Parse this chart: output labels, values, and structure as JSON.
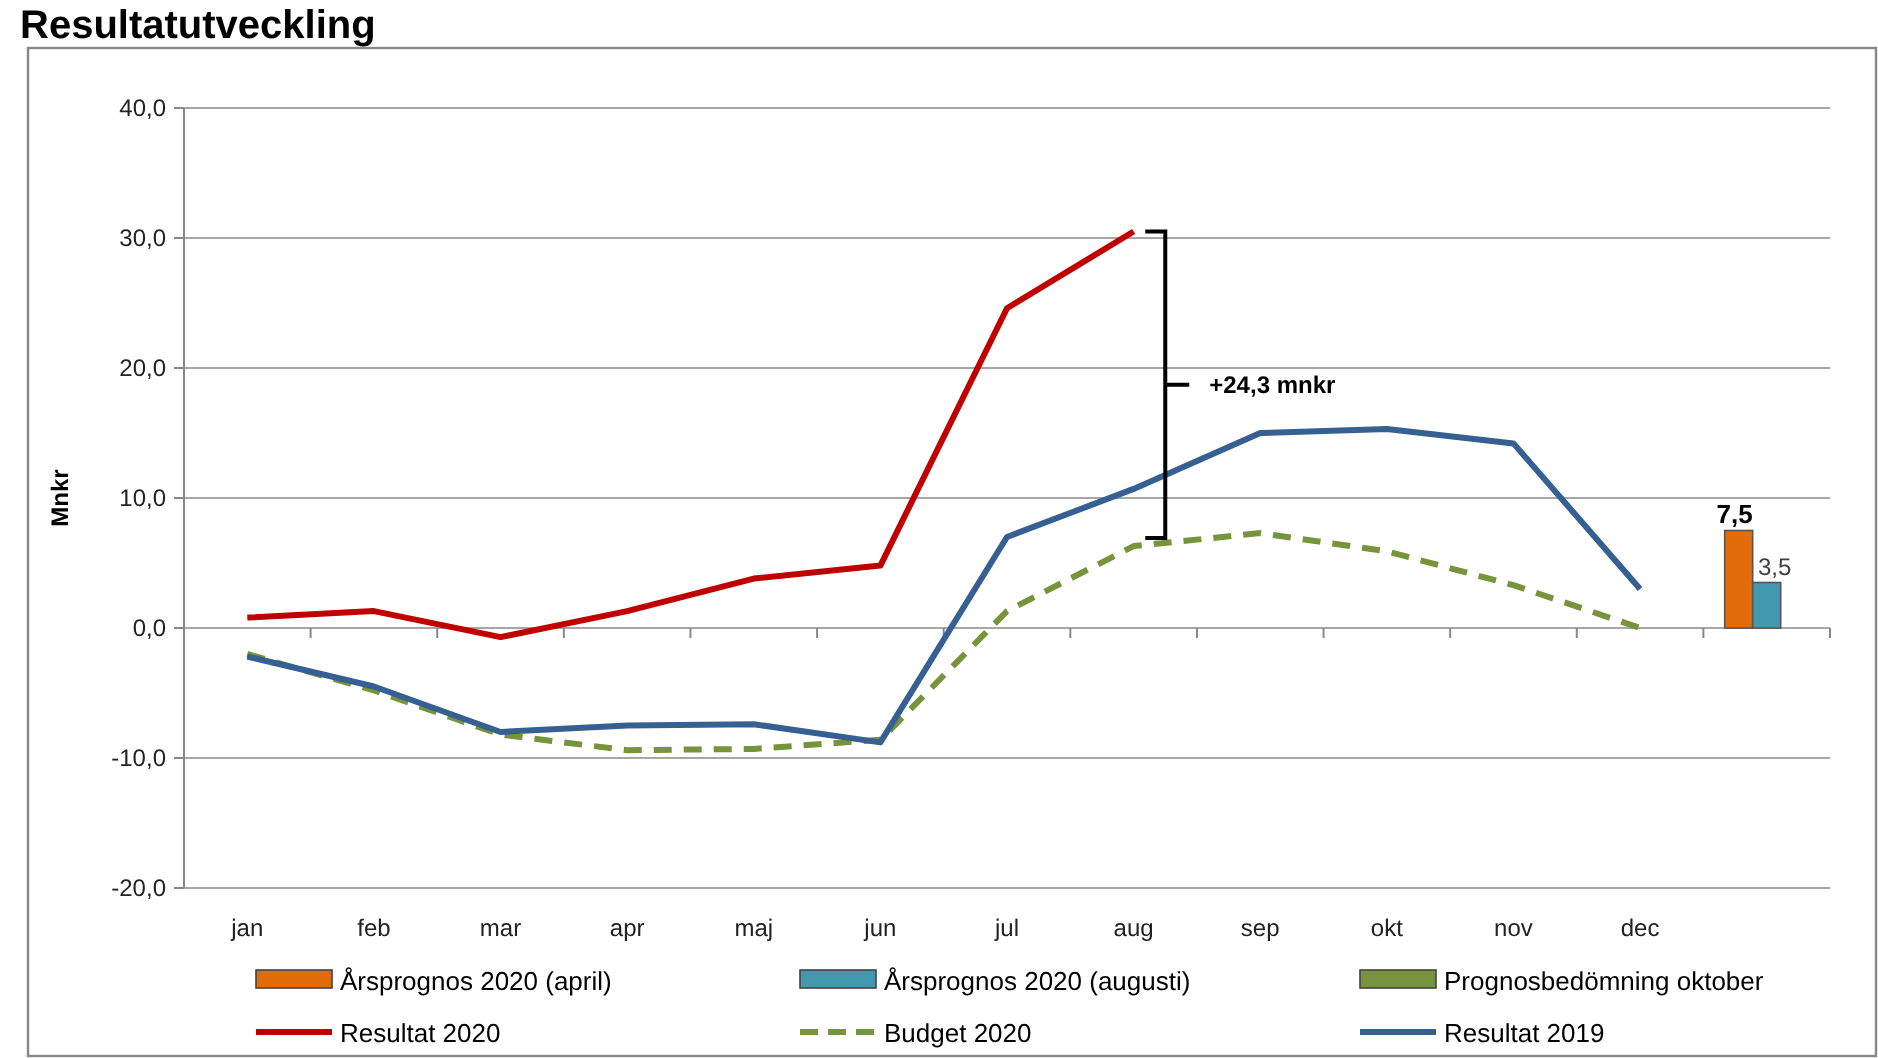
{
  "chart_data": {
    "type": "line",
    "title": "Resultatutveckling",
    "ylabel": "Mnkr",
    "categories": [
      "jan",
      "feb",
      "mar",
      "apr",
      "maj",
      "jun",
      "jul",
      "aug",
      "sep",
      "okt",
      "nov",
      "dec",
      null
    ],
    "ylim": [
      -20,
      40
    ],
    "yticks": [
      {
        "value": -20,
        "label": "-20,0"
      },
      {
        "value": -10,
        "label": "-10,0"
      },
      {
        "value": 0,
        "label": "0,0"
      },
      {
        "value": 10,
        "label": "10,0"
      },
      {
        "value": 20,
        "label": "20,0"
      },
      {
        "value": 30,
        "label": "30,0"
      },
      {
        "value": 40,
        "label": "40,0"
      }
    ],
    "grid": "y",
    "legend": "bottom",
    "series": [
      {
        "name": "Årsprognos 2020 (april)",
        "type": "bar",
        "color": "#e36c0a",
        "values": [
          null,
          null,
          null,
          null,
          null,
          null,
          null,
          null,
          null,
          null,
          null,
          null,
          7.5
        ],
        "value_labels": [
          null,
          null,
          null,
          null,
          null,
          null,
          null,
          null,
          null,
          null,
          null,
          null,
          "7,5"
        ]
      },
      {
        "name": "Årsprognos 2020 (augusti)",
        "type": "bar",
        "color": "#4198af",
        "values": [
          null,
          null,
          null,
          null,
          null,
          null,
          null,
          null,
          null,
          null,
          null,
          null,
          3.5
        ],
        "value_labels": [
          null,
          null,
          null,
          null,
          null,
          null,
          null,
          null,
          null,
          null,
          null,
          null,
          "3,5"
        ]
      },
      {
        "name": "Prognosbedömning oktober",
        "type": "bar",
        "color": "#77933c",
        "values": [
          null,
          null,
          null,
          null,
          null,
          null,
          null,
          null,
          null,
          null,
          null,
          null,
          null
        ]
      },
      {
        "name": "Resultat 2020",
        "color": "#c00000",
        "line_style": "solid",
        "values": [
          0.8,
          1.3,
          -0.7,
          1.3,
          3.8,
          4.8,
          24.6,
          30.5,
          null,
          null,
          null,
          null,
          null
        ]
      },
      {
        "name": "Budget 2020",
        "color": "#77933c",
        "line_style": "dashed",
        "values": [
          -2.0,
          -4.8,
          -8.2,
          -9.4,
          -9.3,
          -8.6,
          1.3,
          6.3,
          7.3,
          5.9,
          3.3,
          0.0,
          null
        ]
      },
      {
        "name": "Resultat 2019",
        "color": "#376092",
        "line_style": "solid",
        "values": [
          -2.2,
          -4.5,
          -8.0,
          -7.5,
          -7.4,
          -8.8,
          7.0,
          10.7,
          15.0,
          15.3,
          14.2,
          3.0,
          null
        ]
      }
    ],
    "annotations": [
      "+24,3 mnkr"
    ]
  }
}
